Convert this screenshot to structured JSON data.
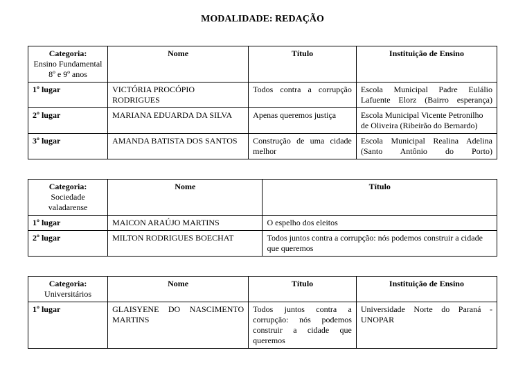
{
  "page_title": "MODALIDADE: REDAÇÃO",
  "table1": {
    "headers": {
      "categoria": "Categoria:",
      "categoria_sub": "Ensino Fundamental 8º e 9º anos",
      "nome": "Nome",
      "titulo": "Título",
      "instituicao": "Instituição de Ensino"
    },
    "rows": [
      {
        "place": "1º lugar",
        "nome": "VICTÓRIA PROCÓPIO RODRIGUES",
        "titulo": "Todos contra a corrupção",
        "instituicao": "Escola Municipal Padre Eulálio Lafuente Elorz (Bairro esperança)"
      },
      {
        "place": "2º lugar",
        "nome": "MARIANA EDUARDA DA SILVA",
        "titulo": "Apenas queremos justiça",
        "instituicao": "Escola Municipal Vicente Petronilho de Oliveira (Ribeirão do Bernardo)"
      },
      {
        "place": "3º lugar",
        "nome": "AMANDA BATISTA DOS SANTOS",
        "titulo": "Construção de uma cidade melhor",
        "instituicao": "Escola Municipal Realina Adelina (Santo Antônio do Porto)"
      }
    ]
  },
  "table2": {
    "headers": {
      "categoria": "Categoria:",
      "categoria_sub": "Sociedade valadarense",
      "nome": "Nome",
      "titulo": "Título"
    },
    "rows": [
      {
        "place": "1º lugar",
        "nome": "MAICON ARAÚJO MARTINS",
        "titulo": "O espelho dos eleitos"
      },
      {
        "place": "2º lugar",
        "nome": "MILTON RODRIGUES BOECHAT",
        "titulo": "Todos juntos contra a corrupção: nós podemos construir a cidade que queremos"
      }
    ]
  },
  "table3": {
    "headers": {
      "categoria": "Categoria:",
      "categoria_sub": "Universitários",
      "nome": "Nome",
      "titulo": "Título",
      "instituicao": "Instituição de Ensino"
    },
    "rows": [
      {
        "place": "1º lugar",
        "nome": "GLAISYENE DO NASCIMENTO MARTINS",
        "titulo": "Todos juntos contra a corrupção: nós podemos construir a cidade que queremos",
        "instituicao": "Universidade Norte do Paraná - UNOPAR"
      }
    ]
  }
}
